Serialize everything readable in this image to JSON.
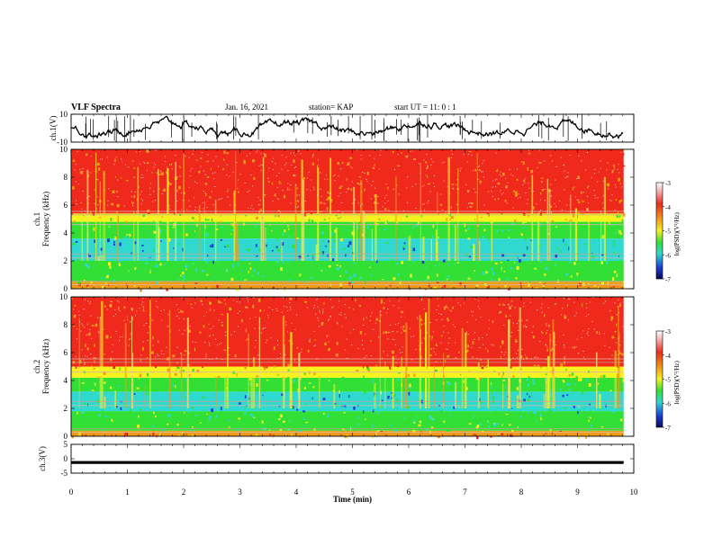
{
  "header": {
    "title": "VLF Spectra",
    "date": "Jan. 16, 2021",
    "station": "station= KAP",
    "start": "start UT = 11: 0 : 1"
  },
  "colors": {
    "red": "#ef2a1c",
    "orange": "#f29a18",
    "yellow": "#f5f21e",
    "green": "#32e035",
    "cyan": "#2fd9cf",
    "blue": "#1b3fd6",
    "line": "#000000"
  },
  "chart_data": [
    {
      "type": "line",
      "panel": "ch1-waveform",
      "ylabel": "ch.1(V)",
      "ylim": [
        -10,
        10
      ],
      "yticks": [
        "10",
        "-10"
      ],
      "xlim": [
        0,
        10
      ],
      "x_extent_min": 9.82,
      "description_values": {
        "baseline_v": 0,
        "typical_amplitude_v": 3
      }
    },
    {
      "type": "heatmap",
      "panel": "ch1-spectrogram",
      "ylabel": "ch.1 Frequency (kHz)",
      "ylim": [
        0,
        10
      ],
      "yticks": [
        "0",
        "2",
        "4",
        "6",
        "8",
        "10"
      ],
      "xlim": [
        0,
        10
      ],
      "x_extent_min": 9.82,
      "bands_khz": [
        {
          "from": 0,
          "to": 0.5,
          "level": "orange"
        },
        {
          "from": 0.5,
          "to": 2.0,
          "level": "green"
        },
        {
          "from": 2.0,
          "to": 3.6,
          "level": "cyan"
        },
        {
          "from": 3.6,
          "to": 4.8,
          "level": "green"
        },
        {
          "from": 4.8,
          "to": 5.4,
          "level": "yellow"
        },
        {
          "from": 5.4,
          "to": 10,
          "level": "red"
        }
      ],
      "colorbar": {
        "label": "log(PSD)(V²/Hz)",
        "range": [
          -7,
          -3
        ],
        "ticks": [
          "-3",
          "-4",
          "-5",
          "-6",
          "-7"
        ]
      }
    },
    {
      "type": "heatmap",
      "panel": "ch2-spectrogram",
      "ylabel": "ch.2 Frequency (kHz)",
      "ylim": [
        0,
        10
      ],
      "yticks": [
        "0",
        "2",
        "4",
        "6",
        "8",
        "10"
      ],
      "xlim": [
        0,
        10
      ],
      "x_extent_min": 9.82,
      "bands_khz": [
        {
          "from": 0,
          "to": 0.4,
          "level": "orange"
        },
        {
          "from": 0.4,
          "to": 1.8,
          "level": "green"
        },
        {
          "from": 1.8,
          "to": 3.2,
          "level": "cyan"
        },
        {
          "from": 3.2,
          "to": 4.2,
          "level": "green"
        },
        {
          "from": 4.2,
          "to": 5.0,
          "level": "yellow"
        },
        {
          "from": 5.0,
          "to": 10,
          "level": "red"
        }
      ],
      "colorbar": {
        "label": "log(PSD)(V²/Hz)",
        "range": [
          -7,
          -3
        ],
        "ticks": [
          "-3",
          "-4",
          "-5",
          "-6",
          "-7"
        ]
      }
    },
    {
      "type": "line",
      "panel": "ch3-waveform",
      "ylabel": "ch.3(V)",
      "ylim": [
        -5,
        5
      ],
      "yticks": [
        "5",
        "0",
        "-5"
      ],
      "xlim": [
        0,
        10
      ],
      "x_extent_min": 9.82,
      "xlabel": "Time (min)",
      "xticks": [
        "0",
        "1",
        "2",
        "3",
        "4",
        "5",
        "6",
        "7",
        "8",
        "9",
        "10"
      ],
      "description_values": {
        "baseline_v": -1.3,
        "band_halfwidth_v": 0.5
      }
    }
  ]
}
